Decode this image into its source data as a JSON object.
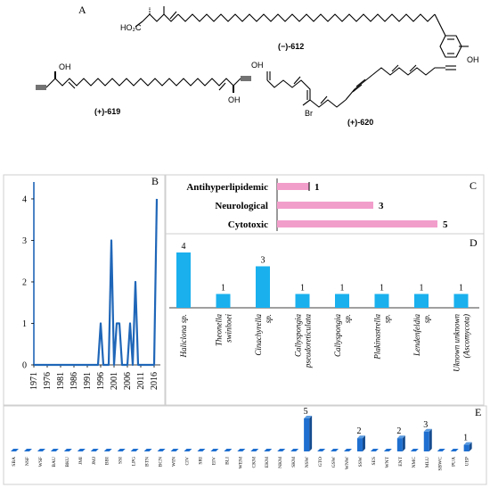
{
  "panelA": {
    "label": "A",
    "compound_612": "(−)-612",
    "compound_619": "(+)-619",
    "compound_620": "(+)-620",
    "atoms": {
      "ho2c": "HO₂C",
      "oh": "OH",
      "br": "Br"
    }
  },
  "chart_data": [
    {
      "id": "B",
      "type": "line",
      "label": "B",
      "x": [
        1971,
        1972,
        1973,
        1974,
        1975,
        1976,
        1977,
        1978,
        1979,
        1980,
        1981,
        1982,
        1983,
        1984,
        1985,
        1986,
        1987,
        1988,
        1989,
        1990,
        1991,
        1992,
        1993,
        1994,
        1995,
        1996,
        1997,
        1998,
        1999,
        2000,
        2001,
        2002,
        2003,
        2004,
        2005,
        2006,
        2007,
        2008,
        2009,
        2010,
        2011,
        2012,
        2013,
        2014,
        2015,
        2016,
        2017
      ],
      "y": [
        0,
        0,
        0,
        0,
        0,
        0,
        0,
        0,
        0,
        0,
        0,
        0,
        0,
        0,
        0,
        0,
        0,
        0,
        0,
        0,
        0,
        0,
        0,
        0,
        0,
        1,
        0,
        0,
        0,
        3,
        0,
        1,
        1,
        0,
        0,
        0,
        1,
        0,
        2,
        0,
        0,
        0,
        0,
        0,
        0,
        0,
        4
      ],
      "xticks": [
        "1971",
        "1976",
        "1981",
        "1986",
        "1991",
        "1996",
        "2001",
        "2006",
        "2011",
        "2016"
      ],
      "yticks": [
        "0",
        "1",
        "2",
        "3",
        "4"
      ],
      "ylim": [
        0,
        4.3
      ],
      "color": "#1f66b8"
    },
    {
      "id": "C",
      "type": "bar",
      "orientation": "horizontal",
      "label": "C",
      "categories": [
        "Antihyperlipidemic",
        "Neurological",
        "Cytotoxic"
      ],
      "values": [
        1,
        3,
        5
      ],
      "value_labels": [
        "1",
        "3",
        "5"
      ],
      "color": "#f29ecb"
    },
    {
      "id": "D",
      "type": "bar",
      "label": "D",
      "categories": [
        "Haliclona sp.",
        "Theonella swinhoei",
        "Cinachyrella sp.",
        "Callyspongia pseudoreticulata",
        "Callyspongia sp.",
        "Plakinastrella sp.",
        "Lendenfeldia sp.",
        "Uknown unknown (Ascomycota)"
      ],
      "values": [
        4,
        1,
        3,
        1,
        1,
        1,
        1,
        1
      ],
      "value_labels": [
        "4",
        "1",
        "3",
        "1",
        "1",
        "1",
        "1",
        "1"
      ],
      "color": "#1ab0ee"
    },
    {
      "id": "E",
      "type": "bar",
      "label": "E",
      "categories": [
        "SBA",
        "NSF",
        "WSF",
        "BAU",
        "BKU",
        "JMI",
        "JMJ",
        "BBI",
        "SSI",
        "LPG",
        "BTN",
        "BCN",
        "WIN",
        "CIV",
        "SRI",
        "EIV",
        "BLI",
        "WEM",
        "CKM",
        "EKM",
        "NKM",
        "SKM",
        "NSW",
        "GTO",
        "GSW",
        "WNW",
        "SSW",
        "SES",
        "WNT",
        "ENT",
        "NMC",
        "MLU",
        "SBWC",
        "PUA",
        "UEP"
      ],
      "values": [
        0,
        0,
        0,
        0,
        0,
        0,
        0,
        0,
        0,
        0,
        0,
        0,
        0,
        0,
        0,
        0,
        0,
        0,
        0,
        0,
        0,
        0,
        5,
        0,
        0,
        0,
        2,
        0,
        0,
        2,
        0,
        3,
        0,
        0,
        1
      ],
      "value_labels": [
        "",
        "",
        "",
        "",
        "",
        "",
        "",
        "",
        "",
        "",
        "",
        "",
        "",
        "",
        "",
        "",
        "",
        "",
        "",
        "",
        "",
        "",
        "5",
        "",
        "",
        "",
        "2",
        "",
        "",
        "2",
        "",
        "3",
        "",
        "",
        "1"
      ],
      "color": "#1e6fd0"
    }
  ]
}
